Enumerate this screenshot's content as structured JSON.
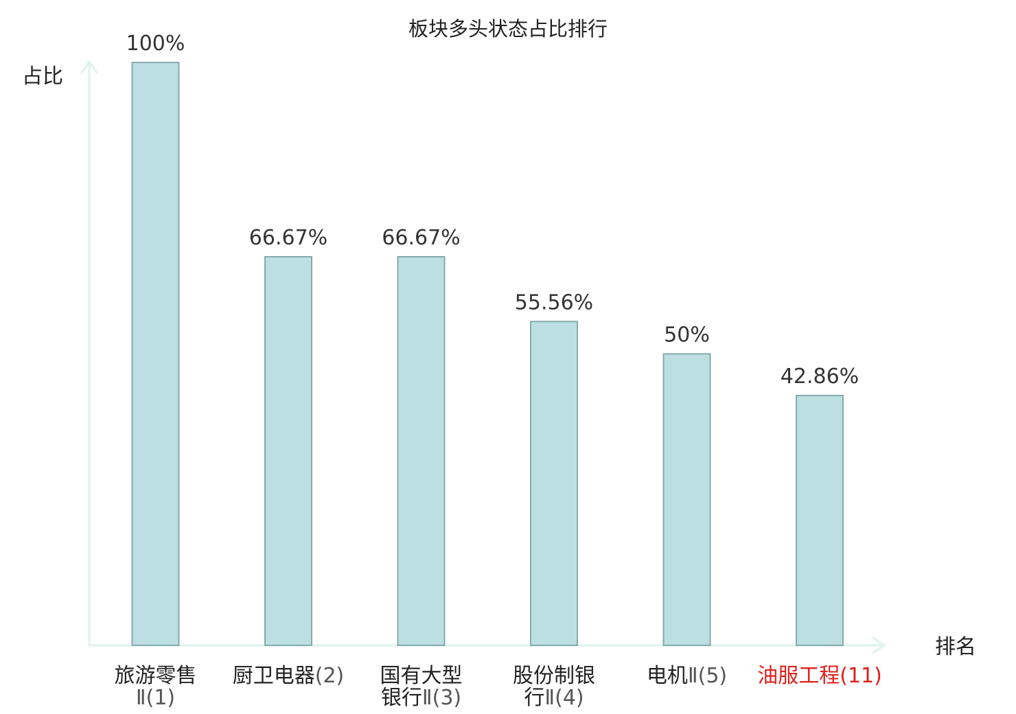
{
  "chart_data": {
    "type": "bar",
    "title": "板块多头状态占比排行",
    "ylabel": "占比",
    "xlabel": "排名",
    "ylim": [
      0,
      100
    ],
    "grid": false,
    "legend": "none",
    "colors": {
      "bar_fill": "#bce0e2",
      "bar_stroke": "#86a9ae",
      "axis": "#dff2ee",
      "highlight_label": "#e0201b",
      "label": "#222222"
    },
    "categories": [
      {
        "lines": [
          {
            "name": "旅游零售",
            "suffix": ""
          },
          {
            "name": "",
            "suffix": "Ⅱ(1)"
          }
        ],
        "highlight": false
      },
      {
        "lines": [
          {
            "name": "厨卫电器",
            "suffix": "(2)"
          }
        ],
        "highlight": false
      },
      {
        "lines": [
          {
            "name": "国有大型",
            "suffix": ""
          },
          {
            "name": "银行",
            "suffix": "Ⅱ(3)"
          }
        ],
        "highlight": false
      },
      {
        "lines": [
          {
            "name": "股份制银",
            "suffix": ""
          },
          {
            "name": "行",
            "suffix": "Ⅱ(4)"
          }
        ],
        "highlight": false
      },
      {
        "lines": [
          {
            "name": "电机",
            "suffix": "Ⅱ(5)"
          }
        ],
        "highlight": false
      },
      {
        "lines": [
          {
            "name": "油服工程",
            "suffix": "(11)"
          }
        ],
        "highlight": true
      }
    ],
    "values": [
      100,
      66.67,
      66.67,
      55.56,
      50,
      42.86
    ],
    "value_labels": [
      "100%",
      "66.67%",
      "66.67%",
      "55.56%",
      "50%",
      "42.86%"
    ]
  }
}
